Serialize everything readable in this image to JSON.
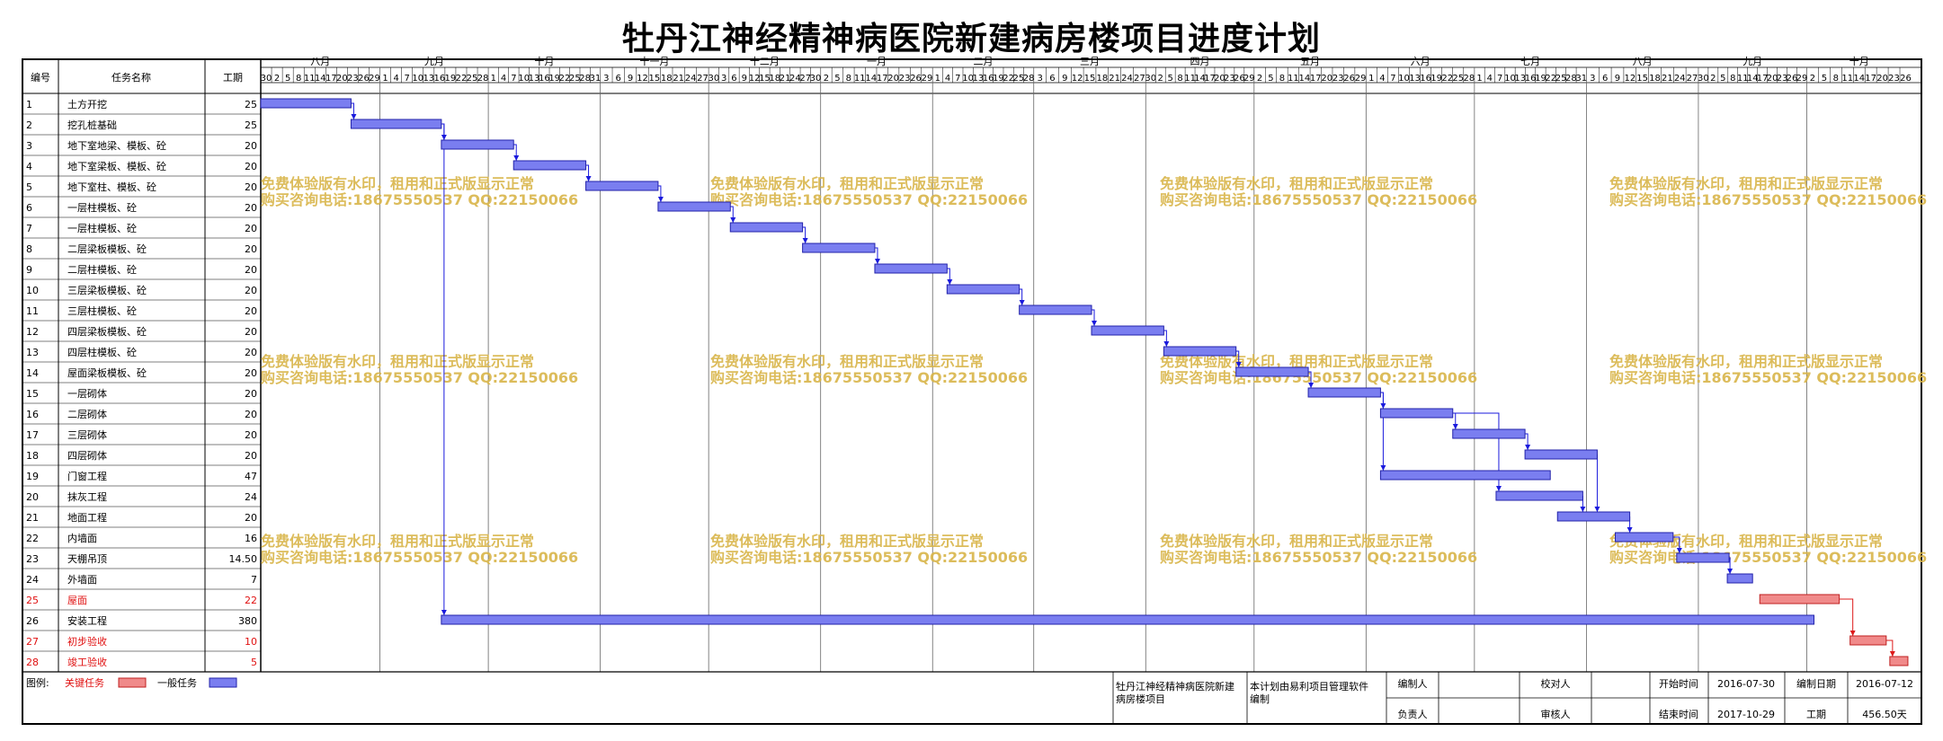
{
  "title": "牡丹江神经精神病医院新建病房楼项目进度计划",
  "colors": {
    "critical": "#f08a8a",
    "normal": "#7a7ef0",
    "bar_border": "#2222aa",
    "critical_border": "#c02020",
    "link": "#1a1add",
    "critical_link": "#dd1a1a",
    "watermark": "#d9b54a"
  },
  "headers": {
    "id": "编号",
    "name": "任务名称",
    "duration": "工期"
  },
  "months": [
    "八月",
    "九月",
    "十月",
    "十一月",
    "十二月",
    "一月",
    "二月",
    "三月",
    "四月",
    "五月",
    "六月",
    "七月",
    "八月",
    "九月",
    "十月"
  ],
  "day_ticks": [
    [
      30,
      2,
      5,
      8,
      11,
      14,
      17,
      20,
      23,
      26,
      29
    ],
    [
      1,
      4,
      7,
      10,
      13,
      16,
      19,
      22,
      25,
      28
    ],
    [
      1,
      4,
      7,
      10,
      13,
      16,
      19,
      22,
      25,
      28,
      31
    ],
    [
      3,
      6,
      9,
      12,
      15,
      18,
      21,
      24,
      27
    ],
    [
      30,
      3,
      6,
      9,
      12,
      15,
      18,
      21,
      24,
      27,
      30
    ],
    [
      2,
      5,
      8,
      11,
      14,
      17,
      20,
      23,
      26,
      29
    ],
    [
      1,
      4,
      7,
      10,
      13,
      16,
      19,
      22,
      25,
      28
    ],
    [
      3,
      6,
      9,
      12,
      15,
      18,
      21,
      24,
      27
    ],
    [
      30,
      2,
      5,
      8,
      11,
      14,
      17,
      20,
      23,
      26,
      29
    ],
    [
      2,
      5,
      8,
      11,
      14,
      17,
      20,
      23,
      26,
      29
    ],
    [
      1,
      4,
      7,
      10,
      13,
      16,
      19,
      22,
      25,
      28
    ],
    [
      1,
      4,
      7,
      10,
      13,
      16,
      19,
      22,
      25,
      28,
      31
    ],
    [
      3,
      6,
      9,
      12,
      15,
      18,
      21,
      24,
      27
    ],
    [
      30,
      2,
      5,
      8,
      11,
      14,
      17,
      20,
      23,
      26,
      29
    ],
    [
      2,
      5,
      8,
      11,
      14,
      17,
      20,
      23,
      26
    ]
  ],
  "watermark": {
    "line1": "免费体验版有水印，租用和正式版显示正常",
    "line2": "购买咨询电话:18675550537 QQ:22150066"
  },
  "chart_data": {
    "type": "gantt",
    "title": "牡丹江神经精神病医院新建病房楼项目进度计划",
    "x_unit": "days from 2016-07-30",
    "tasks": [
      {
        "id": "1",
        "name": "土方开挖",
        "duration": "25",
        "critical": false,
        "start": 0,
        "end": 25
      },
      {
        "id": "2",
        "name": "挖孔桩基础",
        "duration": "25",
        "critical": false,
        "start": 25,
        "end": 50
      },
      {
        "id": "3",
        "name": "地下室地梁、模板、砼",
        "duration": "20",
        "critical": false,
        "start": 50,
        "end": 70
      },
      {
        "id": "4",
        "name": "地下室梁板、模板、砼",
        "duration": "20",
        "critical": false,
        "start": 70,
        "end": 90
      },
      {
        "id": "5",
        "name": "地下室柱、模板、砼",
        "duration": "20",
        "critical": false,
        "start": 90,
        "end": 110
      },
      {
        "id": "6",
        "name": "一层柱模板、砼",
        "duration": "20",
        "critical": false,
        "start": 110,
        "end": 130
      },
      {
        "id": "7",
        "name": "一层柱模板、砼",
        "duration": "20",
        "critical": false,
        "start": 130,
        "end": 150
      },
      {
        "id": "8",
        "name": "二层梁板模板、砼",
        "duration": "20",
        "critical": false,
        "start": 150,
        "end": 170
      },
      {
        "id": "9",
        "name": "二层柱模板、砼",
        "duration": "20",
        "critical": false,
        "start": 170,
        "end": 190
      },
      {
        "id": "10",
        "name": "三层梁板模板、砼",
        "duration": "20",
        "critical": false,
        "start": 190,
        "end": 210
      },
      {
        "id": "11",
        "name": "三层柱模板、砼",
        "duration": "20",
        "critical": false,
        "start": 210,
        "end": 230
      },
      {
        "id": "12",
        "name": "四层梁板模板、砼",
        "duration": "20",
        "critical": false,
        "start": 230,
        "end": 250
      },
      {
        "id": "13",
        "name": "四层柱模板、砼",
        "duration": "20",
        "critical": false,
        "start": 250,
        "end": 270
      },
      {
        "id": "14",
        "name": "屋面梁板模板、砼",
        "duration": "20",
        "critical": false,
        "start": 270,
        "end": 290
      },
      {
        "id": "15",
        "name": "一层砌体",
        "duration": "20",
        "critical": false,
        "start": 290,
        "end": 310
      },
      {
        "id": "16",
        "name": "二层砌体",
        "duration": "20",
        "critical": false,
        "start": 310,
        "end": 330
      },
      {
        "id": "17",
        "name": "三层砌体",
        "duration": "20",
        "critical": false,
        "start": 330,
        "end": 350
      },
      {
        "id": "18",
        "name": "四层砌体",
        "duration": "20",
        "critical": false,
        "start": 350,
        "end": 370
      },
      {
        "id": "19",
        "name": "门窗工程",
        "duration": "47",
        "critical": false,
        "start": 310,
        "end": 357
      },
      {
        "id": "20",
        "name": "抹灰工程",
        "duration": "24",
        "critical": false,
        "start": 342,
        "end": 366
      },
      {
        "id": "21",
        "name": "地面工程",
        "duration": "20",
        "critical": false,
        "start": 359,
        "end": 379
      },
      {
        "id": "22",
        "name": "内墙面",
        "duration": "16",
        "critical": false,
        "start": 375,
        "end": 391
      },
      {
        "id": "23",
        "name": "天棚吊顶",
        "duration": "14.50",
        "critical": false,
        "start": 392,
        "end": 406.5
      },
      {
        "id": "24",
        "name": "外墙面",
        "duration": "7",
        "critical": false,
        "start": 406,
        "end": 413
      },
      {
        "id": "25",
        "name": "屋面",
        "duration": "22",
        "critical": true,
        "start": 415,
        "end": 437
      },
      {
        "id": "26",
        "name": "安装工程",
        "duration": "380",
        "critical": false,
        "start": 50,
        "end": 430
      },
      {
        "id": "27",
        "name": "初步验收",
        "duration": "10",
        "critical": true,
        "start": 440,
        "end": 450
      },
      {
        "id": "28",
        "name": "竣工验收",
        "duration": "5",
        "critical": true,
        "start": 451,
        "end": 456
      }
    ]
  },
  "legend": {
    "label": "图例:",
    "critical": "关键任务",
    "normal": "一般任务"
  },
  "footer": {
    "project": "牡丹江神经精神病医院新建病房楼项目",
    "note": "本计划由易利项目管理软件编制",
    "compiler_label": "编制人",
    "checker_label": "校对人",
    "start_label": "开始时间",
    "start_value": "2016-07-30",
    "date_label": "编制日期",
    "date_value": "2016-07-12",
    "owner_label": "负责人",
    "reviewer_label": "审核人",
    "end_label": "结束时间",
    "end_value": "2017-10-29",
    "period_label": "工期",
    "period_value": "456.50天"
  }
}
